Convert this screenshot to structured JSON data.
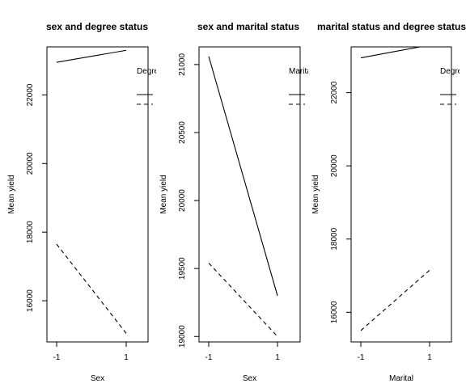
{
  "chart_data": [
    {
      "type": "line",
      "title": "sex and degree status",
      "xlabel": "Sex",
      "ylabel": "Mean yield",
      "x": [
        -1,
        1
      ],
      "x_ticks": [
        "-1",
        "1"
      ],
      "y_ticks": [
        "16000",
        "18000",
        "20000",
        "22000"
      ],
      "ylim": [
        14800,
        23400
      ],
      "legend": {
        "title": "Degree",
        "placement": "top-right, clipped"
      },
      "series": [
        {
          "style": "solid",
          "values": [
            22950,
            23300
          ]
        },
        {
          "style": "dashed",
          "values": [
            17650,
            15050
          ]
        }
      ]
    },
    {
      "type": "line",
      "title": "sex and marital status",
      "xlabel": "Sex",
      "ylabel": "Mean yield",
      "x": [
        -1,
        1
      ],
      "x_ticks": [
        "-1",
        "1"
      ],
      "y_ticks": [
        "19000",
        "19500",
        "20000",
        "20500",
        "21000"
      ],
      "ylim": [
        18960,
        21130
      ],
      "legend": {
        "title": "Marital",
        "placement": "top-right, clipped"
      },
      "series": [
        {
          "style": "solid",
          "values": [
            21060,
            19300
          ]
        },
        {
          "style": "dashed",
          "values": [
            19540,
            19000
          ]
        }
      ]
    },
    {
      "type": "line",
      "title": "marital status and degree status",
      "xlabel": "Marital",
      "ylabel": "Mean yield",
      "x": [
        -1,
        1
      ],
      "x_ticks": [
        "-1",
        "1"
      ],
      "y_ticks": [
        "16000",
        "18000",
        "20000",
        "22000"
      ],
      "ylim": [
        15190,
        23250
      ],
      "legend": {
        "title": "Degree",
        "placement": "top-right, clipped"
      },
      "series": [
        {
          "style": "solid",
          "values": [
            22950,
            23300
          ]
        },
        {
          "style": "dashed",
          "values": [
            15500,
            17150
          ]
        }
      ]
    }
  ]
}
